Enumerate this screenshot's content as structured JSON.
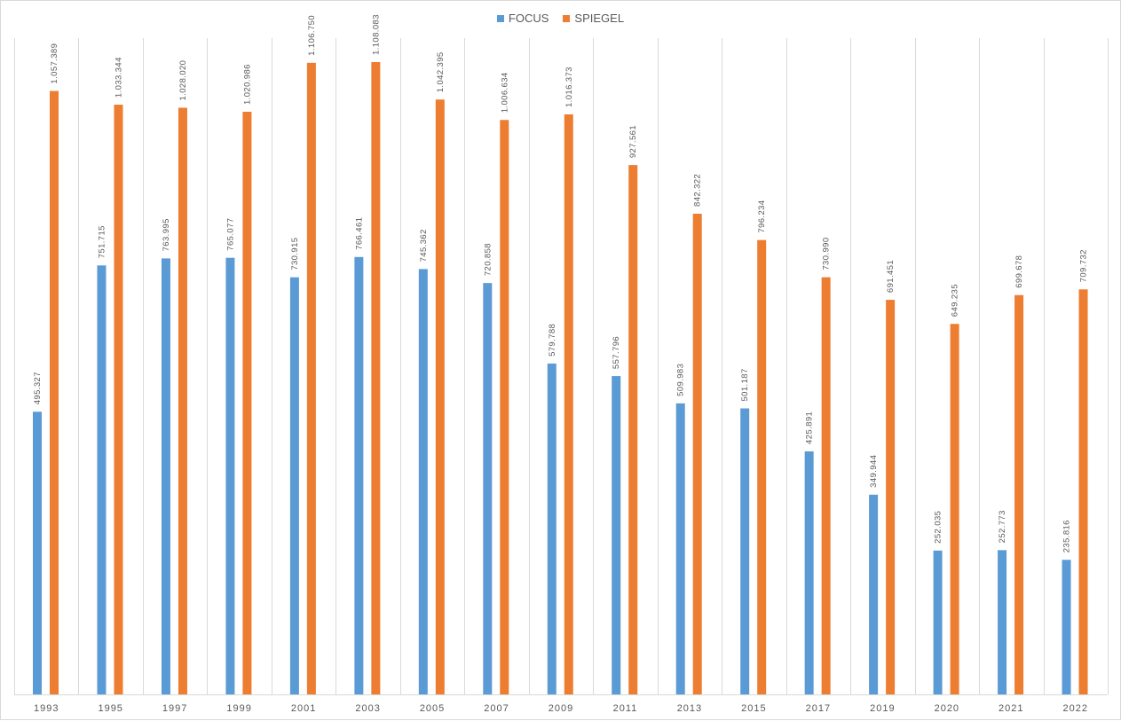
{
  "chart_data": {
    "type": "bar",
    "categories": [
      "1993",
      "1995",
      "1997",
      "1999",
      "2001",
      "2003",
      "2005",
      "2007",
      "2009",
      "2011",
      "2013",
      "2015",
      "2017",
      "2019",
      "2020",
      "2021",
      "2022"
    ],
    "series": [
      {
        "name": "FOCUS",
        "color": "#5b9bd5",
        "values": [
          495327,
          751715,
          763995,
          765077,
          730915,
          766461,
          745362,
          720858,
          579788,
          557796,
          509983,
          501187,
          425891,
          349944,
          252035,
          252773,
          235816
        ],
        "labels": [
          "495.327",
          "751.715",
          "763.995",
          "765.077",
          "730.915",
          "766.461",
          "745.362",
          "720.858",
          "579.788",
          "557.796",
          "509.983",
          "501.187",
          "425.891",
          "349.944",
          "252.035",
          "252.773",
          "235.816"
        ]
      },
      {
        "name": "SPIEGEL",
        "color": "#ed7d31",
        "values": [
          1057389,
          1033344,
          1028020,
          1020986,
          1106750,
          1108083,
          1042395,
          1006634,
          1016373,
          927561,
          842322,
          796234,
          730990,
          691451,
          649235,
          699678,
          709732
        ],
        "labels": [
          "1.057.389",
          "1.033.344",
          "1.028.020",
          "1.020.986",
          "1.106.750",
          "1.108.083",
          "1.042.395",
          "1.006.634",
          "1.016.373",
          "927.561",
          "842.322",
          "796.234",
          "730.990",
          "691.451",
          "649.235",
          "699.678",
          "709.732"
        ]
      }
    ],
    "legend_position": "top",
    "grid": "vertical category separators",
    "ylim": [
      0,
      1150000
    ]
  }
}
